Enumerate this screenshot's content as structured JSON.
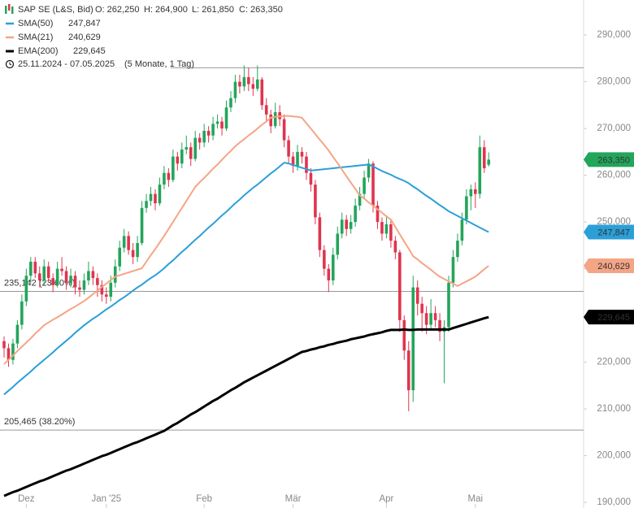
{
  "chart_data": {
    "type": "candlestick",
    "title": "SAP SE (L&S, Bid)",
    "ohlc_labels": [
      "O: 262,250",
      "H: 264,900",
      "L: 261,850",
      "C: 263,350"
    ],
    "period": "25.11.2024 - 07.05.2025",
    "period_note": "(5 Monate, 1 Tag)",
    "up_color": "#23a55a",
    "down_color": "#e0344f",
    "last_label": "263,350",
    "categories": [
      null,
      null,
      null,
      null,
      null,
      "Dez",
      null,
      null,
      null,
      null,
      null,
      null,
      null,
      null,
      null,
      null,
      null,
      null,
      null,
      null,
      null,
      null,
      null,
      "Jan '25",
      null,
      null,
      null,
      null,
      null,
      null,
      null,
      null,
      null,
      null,
      null,
      null,
      null,
      null,
      null,
      null,
      null,
      null,
      null,
      null,
      null,
      "Feb",
      null,
      null,
      null,
      null,
      null,
      null,
      null,
      null,
      null,
      null,
      null,
      null,
      null,
      null,
      null,
      null,
      null,
      null,
      null,
      "Mär",
      null,
      null,
      null,
      null,
      null,
      null,
      null,
      null,
      null,
      null,
      null,
      null,
      null,
      null,
      null,
      null,
      null,
      null,
      null,
      null,
      "Apr",
      null,
      null,
      null,
      null,
      null,
      null,
      null,
      null,
      null,
      null,
      null,
      null,
      null,
      null,
      null,
      null,
      null,
      null,
      null,
      "Mai",
      null,
      null,
      null
    ],
    "open": [
      224500,
      223000,
      220500,
      224000,
      228000,
      233000,
      238500,
      241500,
      239000,
      237500,
      240500,
      238000,
      236500,
      240000,
      239500,
      237000,
      238500,
      236000,
      235500,
      237500,
      239500,
      238000,
      236500,
      234500,
      234000,
      237000,
      240500,
      244500,
      247000,
      244000,
      242500,
      245500,
      253000,
      254500,
      256000,
      254000,
      258000,
      260500,
      259000,
      264000,
      262500,
      265500,
      266000,
      263500,
      268000,
      267000,
      269500,
      268500,
      271000,
      271500,
      270000,
      274500,
      276500,
      280000,
      279000,
      281000,
      279500,
      278500,
      280500,
      275000,
      273000,
      270500,
      273500,
      272000,
      267500,
      264000,
      262000,
      265000,
      264000,
      260500,
      258000,
      251000,
      244000,
      240000,
      237500,
      243000,
      247500,
      250500,
      248500,
      250000,
      253500,
      256000,
      259500,
      262500,
      253500,
      250000,
      247500,
      249500,
      246000,
      243500,
      229000,
      222500,
      214000,
      236000,
      232500,
      230500,
      228000,
      230500,
      229000,
      226500,
      227500,
      237000,
      242500,
      246000,
      250500,
      255500,
      257000,
      256000,
      266000,
      262250
    ],
    "high": [
      225500,
      224000,
      225000,
      229000,
      234500,
      240000,
      242500,
      242500,
      240500,
      242000,
      241500,
      239000,
      241500,
      242500,
      240500,
      240000,
      239500,
      237500,
      239000,
      241500,
      240500,
      239000,
      237500,
      236000,
      238500,
      242000,
      246000,
      248500,
      248000,
      245500,
      247000,
      254500,
      256000,
      257500,
      257000,
      259500,
      262000,
      261500,
      265500,
      265000,
      267000,
      268500,
      267000,
      269500,
      269000,
      271000,
      270500,
      272500,
      273000,
      272500,
      276000,
      278000,
      281500,
      281500,
      283500,
      283000,
      281000,
      283500,
      281000,
      276500,
      274000,
      275500,
      275000,
      273000,
      268500,
      265000,
      266500,
      266000,
      265000,
      261500,
      259000,
      252000,
      245000,
      241000,
      244500,
      249000,
      252000,
      251500,
      251500,
      255000,
      257500,
      261000,
      263500,
      263000,
      254500,
      251000,
      251000,
      250500,
      247000,
      244000,
      230000,
      224500,
      238500,
      237500,
      234000,
      232000,
      233500,
      232000,
      230500,
      229000,
      238500,
      244000,
      247500,
      252000,
      257000,
      258000,
      258500,
      268500,
      267500,
      264900
    ],
    "low": [
      221000,
      219000,
      219500,
      223000,
      227000,
      232000,
      237000,
      238000,
      236000,
      236500,
      237000,
      235000,
      236000,
      238500,
      235500,
      236000,
      234500,
      234000,
      234500,
      236500,
      236500,
      234000,
      233000,
      232500,
      233000,
      236000,
      239500,
      243500,
      243000,
      241000,
      241500,
      245000,
      252000,
      253500,
      252500,
      253500,
      257000,
      257500,
      258500,
      261000,
      261500,
      264500,
      262000,
      263000,
      265500,
      266000,
      267000,
      267500,
      270000,
      268500,
      269500,
      273500,
      275500,
      277500,
      278000,
      278000,
      277000,
      278000,
      274000,
      271500,
      269000,
      270000,
      270500,
      266000,
      262500,
      260500,
      261000,
      262500,
      259000,
      256500,
      249500,
      242500,
      238500,
      235000,
      236500,
      242000,
      246500,
      247000,
      247500,
      249000,
      252500,
      255000,
      258500,
      252000,
      248500,
      246000,
      246500,
      244500,
      242000,
      226500,
      220500,
      209500,
      211500,
      230000,
      226500,
      226000,
      227000,
      227500,
      224500,
      215500,
      226500,
      236000,
      241500,
      245000,
      249500,
      252500,
      253000,
      255000,
      260500,
      261850
    ],
    "close": [
      223000,
      220500,
      224000,
      228000,
      233000,
      238500,
      241500,
      239000,
      237500,
      240500,
      238000,
      236500,
      240000,
      239500,
      237000,
      238500,
      236000,
      235500,
      237500,
      239500,
      238000,
      236500,
      234500,
      234000,
      237000,
      240500,
      244500,
      247000,
      244000,
      242500,
      245500,
      253000,
      254500,
      256000,
      254000,
      258000,
      260500,
      259000,
      264000,
      262500,
      265500,
      266000,
      263500,
      268000,
      267000,
      269500,
      268500,
      271000,
      271500,
      270000,
      274500,
      276500,
      280000,
      279000,
      281000,
      279500,
      278500,
      280500,
      275000,
      273000,
      270500,
      273500,
      272000,
      267500,
      264000,
      262000,
      265000,
      264000,
      260500,
      258000,
      251000,
      244000,
      240000,
      237500,
      243000,
      247500,
      250500,
      248500,
      250000,
      253500,
      256000,
      259500,
      262500,
      253500,
      250000,
      247500,
      249500,
      246000,
      243500,
      229000,
      222500,
      214000,
      236000,
      232500,
      230500,
      228000,
      230500,
      229000,
      226500,
      227500,
      237000,
      242500,
      246000,
      250500,
      255500,
      257000,
      256000,
      266000,
      261500,
      263350
    ],
    "series": [
      {
        "name": "SMA(50)",
        "color": "#2b9fd8",
        "width": 2,
        "last_label": "247,847",
        "values": [
          213100,
          213900,
          214700,
          215600,
          216400,
          217200,
          218000,
          218900,
          219700,
          220500,
          221300,
          222100,
          223000,
          223800,
          224600,
          225400,
          226300,
          227100,
          227900,
          228600,
          229300,
          229900,
          230600,
          231300,
          231900,
          232600,
          233300,
          233900,
          234600,
          235300,
          236000,
          236600,
          237300,
          238000,
          238600,
          239300,
          240100,
          241000,
          241800,
          242700,
          243600,
          244400,
          245300,
          246200,
          247000,
          247900,
          248800,
          249600,
          250500,
          251400,
          252200,
          253100,
          254000,
          254800,
          255700,
          256500,
          257300,
          258000,
          258800,
          259600,
          260400,
          261100,
          261900,
          262700,
          262500,
          262200,
          261900,
          261600,
          261300,
          261000,
          261100,
          261200,
          261300,
          261400,
          261500,
          261600,
          261700,
          261800,
          261900,
          262000,
          262100,
          262200,
          262300,
          261900,
          261400,
          260900,
          260500,
          260100,
          259600,
          259200,
          258800,
          258300,
          257600,
          257000,
          256300,
          255600,
          255000,
          254300,
          253600,
          253000,
          252300,
          251800,
          251300,
          250800,
          250300,
          249800,
          249300,
          248800,
          248300,
          247847
        ]
      },
      {
        "name": "SMA(21)",
        "color": "#f4a585",
        "width": 2,
        "last_label": "240,629",
        "values": [
          219600,
          220500,
          221400,
          222400,
          223300,
          224200,
          225100,
          226100,
          227000,
          227900,
          228500,
          229100,
          229600,
          230200,
          230800,
          231400,
          231900,
          232500,
          233100,
          233800,
          234600,
          235300,
          236100,
          236800,
          237600,
          238300,
          238600,
          238900,
          239200,
          239500,
          239800,
          240100,
          241500,
          242900,
          244200,
          245600,
          247000,
          248500,
          250000,
          251500,
          253000,
          254500,
          256000,
          257500,
          258500,
          259400,
          260400,
          261400,
          262300,
          263300,
          264300,
          265200,
          266200,
          267000,
          267700,
          268500,
          269200,
          270000,
          270800,
          271500,
          272300,
          272500,
          272600,
          272700,
          272700,
          272600,
          272500,
          272300,
          271100,
          270000,
          268800,
          267600,
          266500,
          265300,
          263900,
          262600,
          261200,
          259800,
          258400,
          257100,
          255700,
          255000,
          254200,
          253500,
          252700,
          252000,
          251200,
          250500,
          248900,
          247400,
          245800,
          244300,
          242700,
          242000,
          241200,
          240500,
          239800,
          239000,
          238300,
          237800,
          237300,
          236800,
          236300,
          236800,
          237300,
          237800,
          238300,
          239100,
          239900,
          240629
        ]
      },
      {
        "name": "EMA(200)",
        "color": "#000000",
        "width": 3,
        "last_label": "229,645",
        "values": [
          191400,
          191800,
          192200,
          192500,
          192900,
          193300,
          193700,
          194100,
          194500,
          194800,
          195200,
          195600,
          196000,
          196400,
          196800,
          197100,
          197500,
          197900,
          198300,
          198700,
          199100,
          199500,
          199900,
          200200,
          200600,
          201000,
          201400,
          201800,
          202200,
          202600,
          202900,
          203300,
          203700,
          204100,
          204500,
          204900,
          205300,
          205900,
          206500,
          207000,
          207600,
          208200,
          208800,
          209300,
          209900,
          210500,
          211100,
          211700,
          212200,
          212800,
          213400,
          214000,
          214500,
          215100,
          215700,
          216200,
          216700,
          217200,
          217700,
          218200,
          218700,
          219200,
          219700,
          220200,
          220700,
          221200,
          221700,
          222200,
          222400,
          222700,
          222900,
          223200,
          223400,
          223700,
          223900,
          224200,
          224400,
          224600,
          224900,
          225100,
          225300,
          225500,
          225800,
          226000,
          226200,
          226400,
          226700,
          226900,
          226900,
          226900,
          227000,
          226900,
          226900,
          227000,
          227000,
          227000,
          227000,
          227000,
          227000,
          227000,
          227000,
          227300,
          227600,
          227900,
          228200,
          228500,
          228800,
          229100,
          229400,
          229645
        ]
      }
    ],
    "levels": [
      {
        "value": 283000
      },
      {
        "value": 235142,
        "label": "235,142 (23.60%)"
      },
      {
        "value": 205465,
        "label": "205,465 (38.20%)"
      }
    ],
    "ylim": [
      188800,
      297500
    ],
    "yticks": [
      {
        "value": 190000,
        "label": "190,000"
      },
      {
        "value": 200000,
        "label": "200,000"
      },
      {
        "value": 210000,
        "label": "210,000"
      },
      {
        "value": 220000,
        "label": "220,000"
      },
      {
        "value": 230000,
        "label": "230,000"
      },
      {
        "value": 240000,
        "label": "240,000"
      },
      {
        "value": 250000,
        "label": "250,000"
      },
      {
        "value": 260000,
        "label": "260,000"
      },
      {
        "value": 270000,
        "label": "270,000"
      },
      {
        "value": 280000,
        "label": "280,000"
      },
      {
        "value": 290000,
        "label": "290,000"
      }
    ]
  }
}
